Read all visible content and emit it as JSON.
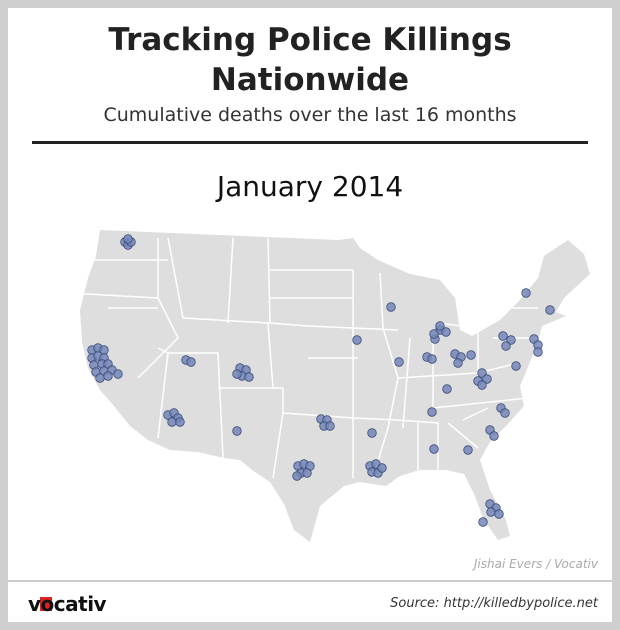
{
  "header": {
    "title": "Tracking Police Killings Nationwide",
    "subtitle": "Cumulative deaths over the last 16 months"
  },
  "map": {
    "date": "January 2014",
    "credit": "Jishai Evers / Vocativ"
  },
  "footer": {
    "logo": "vocativ",
    "source": "Source: http://killedbypolice.net"
  }
}
